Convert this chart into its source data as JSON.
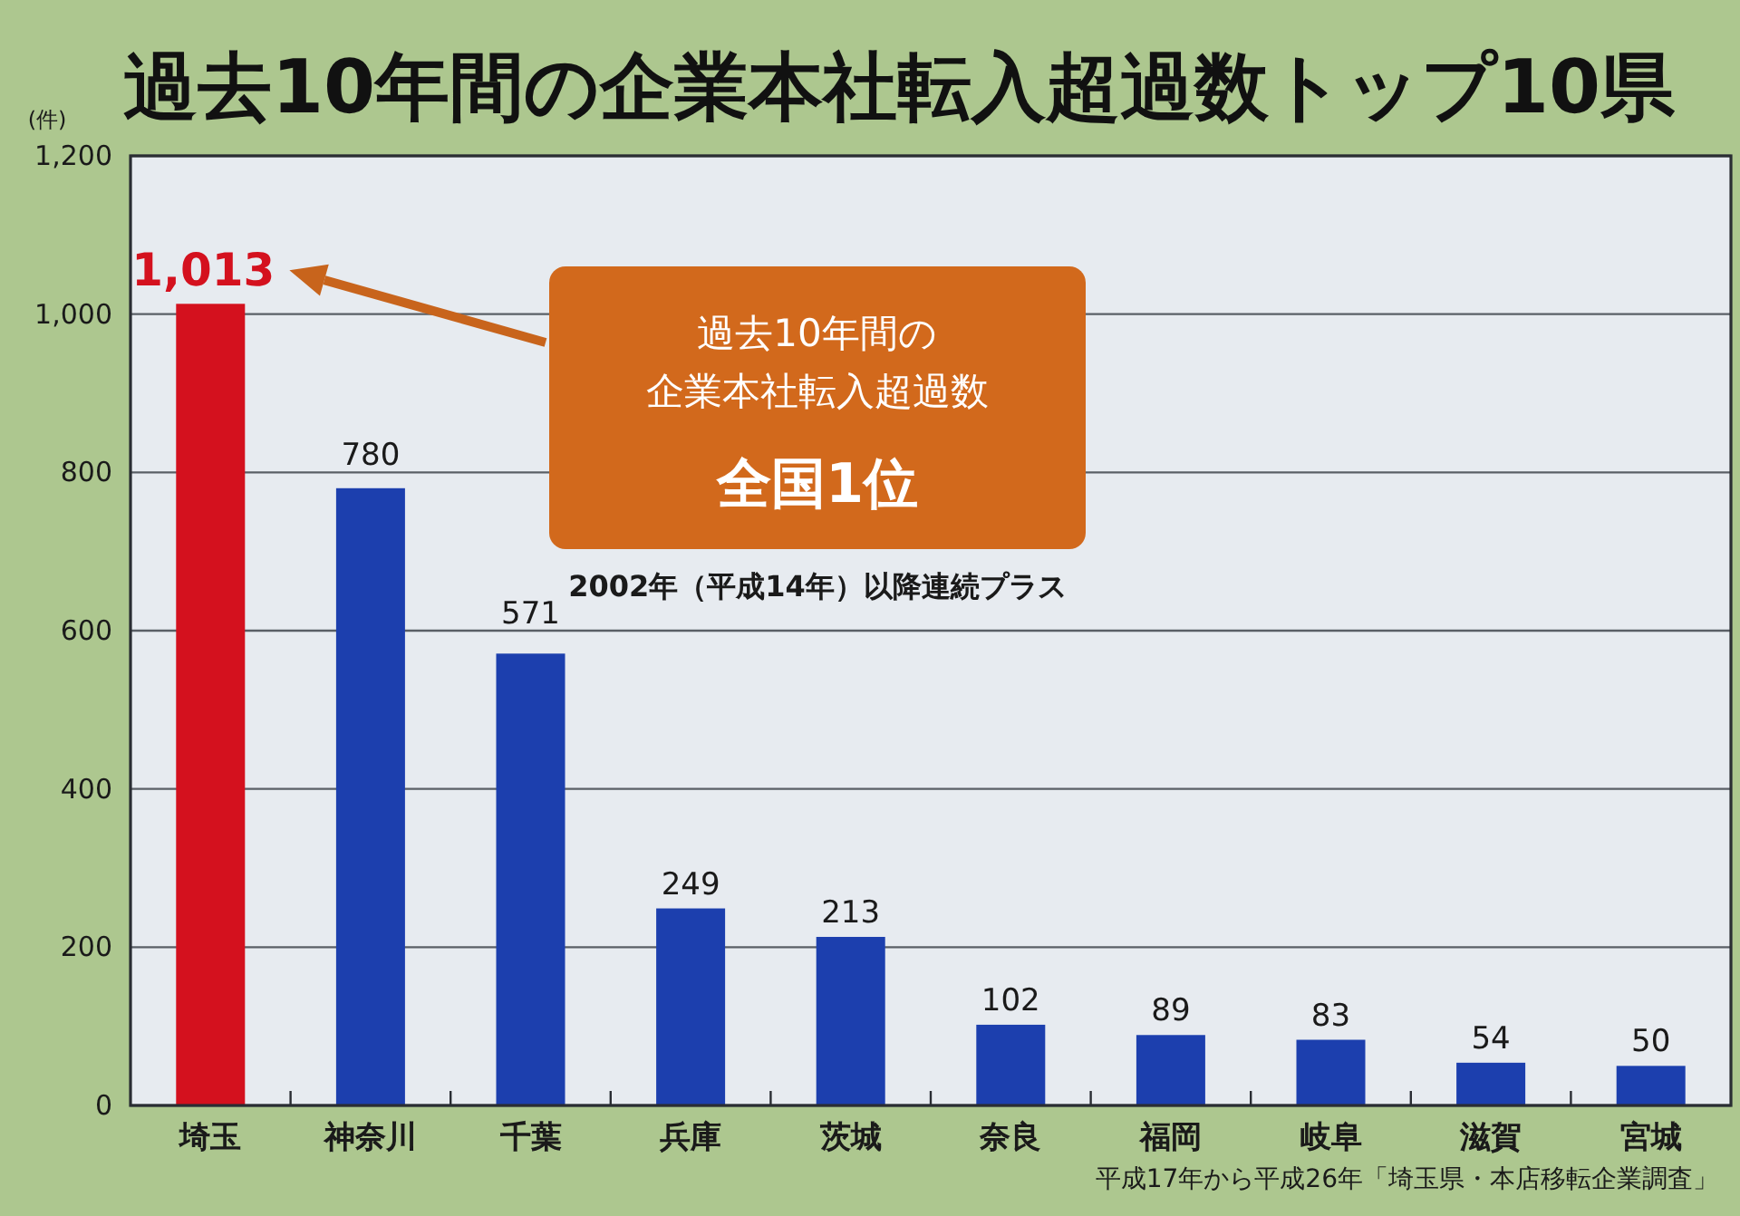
{
  "chart_data": {
    "type": "bar",
    "title": "過去10年間の企業本社転入超過数トップ10県",
    "ylabel": "(件)",
    "categories": [
      "埼玉",
      "神奈川",
      "千葉",
      "兵庫",
      "茨城",
      "奈良",
      "福岡",
      "岐阜",
      "滋賀",
      "宮城"
    ],
    "values": [
      1013,
      780,
      571,
      249,
      213,
      102,
      89,
      83,
      54,
      50
    ],
    "colors": [
      "#d4111e",
      "#1c3fae",
      "#1c3fae",
      "#1c3fae",
      "#1c3fae",
      "#1c3fae",
      "#1c3fae",
      "#1c3fae",
      "#1c3fae",
      "#1c3fae"
    ],
    "value_labels": [
      "1,013",
      "780",
      "571",
      "249",
      "213",
      "102",
      "89",
      "83",
      "54",
      "50"
    ],
    "ylim": [
      0,
      1200
    ],
    "yticks": [
      0,
      200,
      400,
      600,
      800,
      {
        "value": 1000,
        "label": "1,000"
      },
      {
        "value": 1200,
        "label": "1,200"
      }
    ],
    "grid": "y",
    "annotations": [
      "過去10年間の",
      "企業本社転入超過数",
      "全国1位",
      "2002年（平成14年）以降連続プラス",
      "平成17年から平成26年「埼玉県・本店移転企業調査」"
    ]
  }
}
